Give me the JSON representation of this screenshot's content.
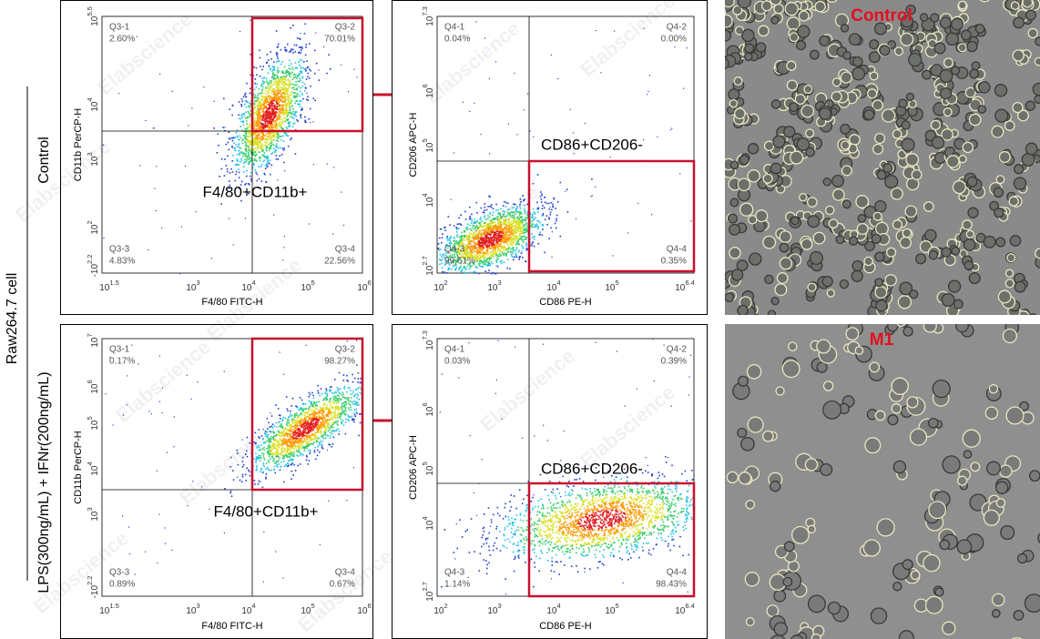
{
  "row_labels": {
    "cell": "Raw264.7 cell",
    "rows": [
      "Control",
      "LPS(300ng/mL) + IFNr(200ng/mL)"
    ]
  },
  "watermark": "Elabscience",
  "plots": [
    {
      "x_label": "F4/80 FITC-H",
      "y_label": "CD11b PerCP-H",
      "x_ticks": [
        {
          "base": "10",
          "exp": "1.5"
        },
        {
          "base": "10",
          "exp": "3"
        },
        {
          "base": "10",
          "exp": "4"
        },
        {
          "base": "10",
          "exp": "5"
        },
        {
          "base": "10",
          "exp": "6"
        }
      ],
      "y_ticks": [
        {
          "base": "10",
          "exp": "5.5"
        },
        {
          "base": "10",
          "exp": "4"
        },
        {
          "base": "10",
          "exp": "3"
        },
        {
          "base": "10",
          "exp": "2"
        },
        {
          "base": "-10",
          "exp": "2.2"
        }
      ],
      "quadrants": [
        {
          "name": "Q3-1",
          "value": "2.60%"
        },
        {
          "name": "Q3-2",
          "value": "70.01%"
        },
        {
          "name": "Q3-3",
          "value": "4.83%"
        },
        {
          "name": "Q3-4",
          "value": "22.56%"
        }
      ],
      "gate_label": "F4/80+CD11b+"
    },
    {
      "x_label": "CD86 PE-H",
      "y_label": "CD206 APC-H",
      "x_ticks": [
        {
          "base": "10",
          "exp": "2"
        },
        {
          "base": "10",
          "exp": "3"
        },
        {
          "base": "10",
          "exp": "4"
        },
        {
          "base": "10",
          "exp": "5"
        },
        {
          "base": "10",
          "exp": "6.4"
        }
      ],
      "y_ticks": [
        {
          "base": "10",
          "exp": "7.3"
        },
        {
          "base": "10",
          "exp": "6"
        },
        {
          "base": "10",
          "exp": "5"
        },
        {
          "base": "10",
          "exp": "4"
        },
        {
          "base": "10",
          "exp": "2.7"
        }
      ],
      "quadrants": [
        {
          "name": "Q4-1",
          "value": "0.04%"
        },
        {
          "name": "Q4-2",
          "value": "0.00%"
        },
        {
          "name": "Q4-3",
          "value": "99.61%"
        },
        {
          "name": "Q4-4",
          "value": "0.35%"
        }
      ],
      "gate_label": "CD86+CD206-"
    },
    {
      "x_label": "F4/80 FITC-H",
      "y_label": "CD11b PerCP-H",
      "x_ticks": [
        {
          "base": "10",
          "exp": "1.5"
        },
        {
          "base": "10",
          "exp": "3"
        },
        {
          "base": "10",
          "exp": "4"
        },
        {
          "base": "10",
          "exp": "5"
        },
        {
          "base": "10",
          "exp": "6"
        }
      ],
      "y_ticks": [
        {
          "base": "10",
          "exp": "7"
        },
        {
          "base": "10",
          "exp": "6"
        },
        {
          "base": "10",
          "exp": "5"
        },
        {
          "base": "10",
          "exp": "4"
        },
        {
          "base": "10",
          "exp": "3"
        },
        {
          "base": "-10",
          "exp": "2.2"
        }
      ],
      "quadrants": [
        {
          "name": "Q3-1",
          "value": "0.17%"
        },
        {
          "name": "Q3-2",
          "value": "98.27%"
        },
        {
          "name": "Q3-3",
          "value": "0.89%"
        },
        {
          "name": "Q3-4",
          "value": "0.67%"
        }
      ],
      "gate_label": "F4/80+CD11b+"
    },
    {
      "x_label": "CD86 PE-H",
      "y_label": "CD206 APC-H",
      "x_ticks": [
        {
          "base": "10",
          "exp": "2"
        },
        {
          "base": "10",
          "exp": "3"
        },
        {
          "base": "10",
          "exp": "4"
        },
        {
          "base": "10",
          "exp": "5"
        },
        {
          "base": "10",
          "exp": "6.4"
        }
      ],
      "y_ticks": [
        {
          "base": "10",
          "exp": "7.3"
        },
        {
          "base": "10",
          "exp": "6"
        },
        {
          "base": "10",
          "exp": "5"
        },
        {
          "base": "10",
          "exp": "4"
        },
        {
          "base": "10",
          "exp": "2.7"
        }
      ],
      "quadrants": [
        {
          "name": "Q4-1",
          "value": "0.03%"
        },
        {
          "name": "Q4-2",
          "value": "0.39%"
        },
        {
          "name": "Q4-3",
          "value": "1.14%"
        },
        {
          "name": "Q4-4",
          "value": "98.43%"
        }
      ],
      "gate_label": "CD86+CD206-"
    }
  ],
  "images": [
    {
      "label": "Control"
    },
    {
      "label": "M1"
    }
  ]
}
